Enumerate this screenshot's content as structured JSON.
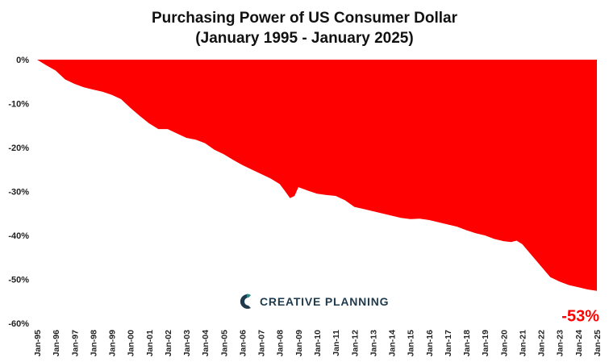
{
  "header": {
    "title_line1": "Purchasing Power of US Consumer Dollar",
    "title_line2": "(January 1995 - January 2025)"
  },
  "logo": {
    "text": "CREATIVE PLANNING"
  },
  "colors": {
    "fill": "#ff0000",
    "logo_teal": "#2a8a8a",
    "logo_navy": "#1e3a4c"
  },
  "chart_data": {
    "type": "area",
    "title": "Purchasing Power of US Consumer Dollar (January 1995 - January 2025)",
    "xlabel": "",
    "ylabel": "",
    "ylim": [
      -60,
      0
    ],
    "yticks": [
      0,
      -10,
      -20,
      -30,
      -40,
      -50,
      -60
    ],
    "ytick_labels": [
      "0%",
      "-10%",
      "-20%",
      "-30%",
      "-40%",
      "-50%",
      "-60%"
    ],
    "xtick_labels": [
      "Jan-95",
      "Jan-96",
      "Jan-97",
      "Jan-98",
      "Jan-99",
      "Jan-00",
      "Jan-01",
      "Jan-02",
      "Jan-03",
      "Jan-04",
      "Jan-05",
      "Jan-06",
      "Jan-07",
      "Jan-08",
      "Jan-09",
      "Jan-10",
      "Jan-11",
      "Jan-12",
      "Jan-13",
      "Jan-14",
      "Jan-15",
      "Jan-16",
      "Jan-17",
      "Jan-18",
      "Jan-19",
      "Jan-20",
      "Jan-21",
      "Jan-22",
      "Jan-23",
      "Jan-24",
      "Jan-25"
    ],
    "x": [
      1995.0,
      1995.5,
      1996.0,
      1996.5,
      1997.0,
      1997.5,
      1998.0,
      1998.5,
      1999.0,
      1999.5,
      2000.0,
      2000.5,
      2001.0,
      2001.5,
      2002.0,
      2002.5,
      2003.0,
      2003.5,
      2004.0,
      2004.5,
      2005.0,
      2005.5,
      2006.0,
      2006.5,
      2007.0,
      2007.5,
      2008.0,
      2008.3,
      2008.55,
      2008.8,
      2009.0,
      2009.5,
      2010.0,
      2010.5,
      2011.0,
      2011.5,
      2012.0,
      2012.5,
      2013.0,
      2013.5,
      2014.0,
      2014.5,
      2015.0,
      2015.5,
      2016.0,
      2016.5,
      2017.0,
      2017.5,
      2018.0,
      2018.5,
      2019.0,
      2019.5,
      2020.0,
      2020.4,
      2020.7,
      2021.0,
      2021.5,
      2022.0,
      2022.5,
      2023.0,
      2023.5,
      2024.0,
      2024.5,
      2025.0
    ],
    "values": [
      0.0,
      -1.3,
      -2.5,
      -4.5,
      -5.5,
      -6.3,
      -6.8,
      -7.3,
      -8.0,
      -9.0,
      -11.0,
      -12.8,
      -14.5,
      -15.8,
      -15.8,
      -16.8,
      -17.8,
      -18.2,
      -19.0,
      -20.5,
      -21.5,
      -22.8,
      -24.0,
      -25.0,
      -26.0,
      -27.0,
      -28.3,
      -30.0,
      -31.5,
      -31.0,
      -29.0,
      -29.8,
      -30.5,
      -30.8,
      -31.0,
      -32.0,
      -33.5,
      -34.0,
      -34.5,
      -35.0,
      -35.5,
      -36.0,
      -36.3,
      -36.2,
      -36.5,
      -37.0,
      -37.5,
      -38.0,
      -38.8,
      -39.5,
      -40.0,
      -40.8,
      -41.3,
      -41.5,
      -41.2,
      -42.0,
      -44.5,
      -47.0,
      -49.5,
      -50.5,
      -51.3,
      -51.8,
      -52.3,
      -52.6
    ],
    "annotation": "-53%",
    "grid": false,
    "legend": "none"
  }
}
